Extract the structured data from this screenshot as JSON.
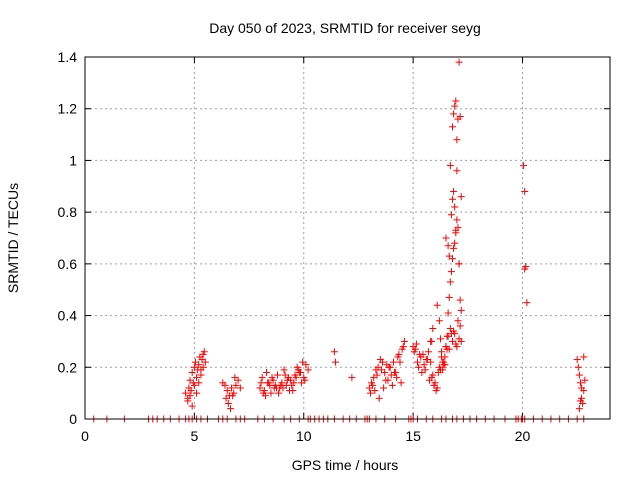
{
  "chart_data": {
    "type": "scatter",
    "title": "Day 050 of 2023, SRMTID for receiver seyg",
    "xlabel": "GPS time / hours",
    "ylabel": "SRMTID / TECUs",
    "xlim": [
      0,
      24
    ],
    "ylim": [
      0,
      1.4
    ],
    "xticks": [
      0,
      5,
      10,
      15,
      20
    ],
    "yticks": [
      0,
      0.2,
      0.4,
      0.6,
      0.8,
      1,
      1.2,
      1.4
    ],
    "xtick_labels": [
      "0",
      "5",
      "10",
      "15",
      "20"
    ],
    "ytick_labels": [
      "0",
      "0.2",
      "0.4",
      "0.6",
      "0.8",
      "1",
      "1.2",
      "1.4"
    ],
    "grid": true,
    "marker": "+",
    "color": "#ff0000",
    "series": [
      {
        "name": "SRMTID",
        "x": [
          0.4,
          1.0,
          1.8,
          2.9,
          3.1,
          3.3,
          3.6,
          3.9,
          4.3,
          4.6,
          4.75,
          4.9,
          5.1,
          5.3,
          5.6,
          6.1,
          6.3,
          6.5,
          6.9,
          7.1,
          7.3,
          7.9,
          8.2,
          8.6,
          9.1,
          9.4,
          9.8,
          10.2,
          10.3,
          10.5,
          10.7,
          10.9,
          11.1,
          11.4,
          11.8,
          12.1,
          12.4,
          12.8,
          12.9,
          13.0,
          13.3,
          13.7,
          14.2,
          14.8,
          14.9,
          15.0,
          15.2,
          15.6,
          15.9,
          16.3,
          16.5,
          16.8,
          17.0,
          17.3,
          17.6,
          17.9,
          18.3,
          18.7,
          19.2,
          19.7,
          19.8,
          19.95,
          20.0,
          20.1,
          20.5,
          20.9,
          21.3,
          21.7,
          22.1,
          22.5,
          22.8,
          4.6,
          4.7,
          4.75,
          4.8,
          4.85,
          4.9,
          4.95,
          5.0,
          5.05,
          5.1,
          5.15,
          5.2,
          5.25,
          5.3,
          5.35,
          5.4,
          5.45,
          5.5,
          4.7,
          4.8,
          4.9,
          5.0,
          5.1,
          5.2,
          5.3,
          5.4,
          6.3,
          6.4,
          6.5,
          6.6,
          6.7,
          6.8,
          6.9,
          7.0,
          7.1,
          6.45,
          6.55,
          6.65,
          6.75,
          6.85,
          8.0,
          8.1,
          8.2,
          8.3,
          8.4,
          8.5,
          8.6,
          8.7,
          8.8,
          8.9,
          9.0,
          9.1,
          9.2,
          9.3,
          9.4,
          9.5,
          9.6,
          9.7,
          9.8,
          9.9,
          10.0,
          10.1,
          10.2,
          8.05,
          8.25,
          8.45,
          8.65,
          8.85,
          9.05,
          9.25,
          9.45,
          9.65,
          9.85,
          10.05,
          8.15,
          8.35,
          8.55,
          8.75,
          8.95,
          9.15,
          9.35,
          9.55,
          9.75,
          9.95,
          11.4,
          11.45,
          12.2,
          13.0,
          13.1,
          13.2,
          13.3,
          13.4,
          13.5,
          13.6,
          13.7,
          13.8,
          13.9,
          14.0,
          14.1,
          14.2,
          14.3,
          14.4,
          14.5,
          14.6,
          13.05,
          13.25,
          13.45,
          13.65,
          13.85,
          14.05,
          14.25,
          14.45,
          13.15,
          13.35,
          13.55,
          13.75,
          13.95,
          14.15,
          14.35,
          14.55,
          15.0,
          15.1,
          15.2,
          15.3,
          15.4,
          15.5,
          15.6,
          15.7,
          15.8,
          15.9,
          16.0,
          16.1,
          16.2,
          16.3,
          16.4,
          16.5,
          16.6,
          16.7,
          16.8,
          16.9,
          17.0,
          17.1,
          17.2,
          15.05,
          15.25,
          15.45,
          15.65,
          15.85,
          16.05,
          16.25,
          16.45,
          16.65,
          16.85,
          17.05,
          15.15,
          15.35,
          15.55,
          15.75,
          15.95,
          16.15,
          16.35,
          16.55,
          16.75,
          16.95,
          17.15,
          15.8,
          15.85,
          15.9,
          16.1,
          16.2,
          16.25,
          16.3,
          16.35,
          16.4,
          16.45,
          16.5,
          16.55,
          16.6,
          16.65,
          16.7,
          16.75,
          16.8,
          16.85,
          16.9,
          16.95,
          17.0,
          17.05,
          17.1,
          17.15,
          17.2,
          16.5,
          16.6,
          16.65,
          16.7,
          16.75,
          16.8,
          16.85,
          16.9,
          16.95,
          17.0,
          17.1,
          17.2,
          16.8,
          16.85,
          16.9,
          16.95,
          17.0,
          17.05,
          17.1,
          17.15,
          20.05,
          20.1,
          20.15,
          20.1,
          20.2,
          22.5,
          22.55,
          22.6,
          22.65,
          22.7,
          22.75,
          22.8,
          22.85,
          22.6,
          22.7,
          22.8,
          22.65
        ],
        "y": [
          0,
          0,
          0,
          0,
          0,
          0,
          0,
          0,
          0,
          0,
          0,
          0,
          0,
          0,
          0,
          0,
          0,
          0,
          0,
          0,
          0,
          0,
          0,
          0,
          0,
          0,
          0,
          0,
          0,
          0,
          0,
          0,
          0,
          0,
          0,
          0,
          0,
          0,
          0,
          0,
          0,
          0,
          0,
          0,
          0,
          0,
          0,
          0,
          0,
          0,
          0,
          0,
          0,
          0,
          0,
          0,
          0,
          0,
          0,
          0,
          0,
          0,
          0,
          0,
          0,
          0,
          0,
          0,
          0,
          0,
          0,
          0.1,
          0.08,
          0.12,
          0.15,
          0.11,
          0.18,
          0.14,
          0.2,
          0.22,
          0.16,
          0.19,
          0.21,
          0.24,
          0.17,
          0.23,
          0.2,
          0.26,
          0.22,
          0.07,
          0.09,
          0.05,
          0.13,
          0.1,
          0.14,
          0.19,
          0.25,
          0.14,
          0.13,
          0.11,
          0.09,
          0.12,
          0.1,
          0.13,
          0.15,
          0.12,
          0.08,
          0.06,
          0.04,
          0.09,
          0.16,
          0.12,
          0.16,
          0.11,
          0.18,
          0.14,
          0.1,
          0.15,
          0.13,
          0.17,
          0.12,
          0.14,
          0.19,
          0.13,
          0.16,
          0.15,
          0.11,
          0.17,
          0.2,
          0.18,
          0.14,
          0.16,
          0.21,
          0.19,
          0.14,
          0.09,
          0.13,
          0.12,
          0.1,
          0.12,
          0.15,
          0.13,
          0.16,
          0.18,
          0.15,
          0.1,
          0.14,
          0.16,
          0.12,
          0.13,
          0.17,
          0.11,
          0.14,
          0.19,
          0.22,
          0.26,
          0.22,
          0.16,
          0.12,
          0.14,
          0.16,
          0.19,
          0.2,
          0.23,
          0.22,
          0.18,
          0.21,
          0.2,
          0.17,
          0.22,
          0.18,
          0.24,
          0.22,
          0.27,
          0.3,
          0.1,
          0.11,
          0.08,
          0.12,
          0.15,
          0.13,
          0.16,
          0.14,
          0.13,
          0.17,
          0.19,
          0.15,
          0.2,
          0.18,
          0.25,
          0.28,
          0.28,
          0.27,
          0.22,
          0.25,
          0.18,
          0.21,
          0.23,
          0.26,
          0.3,
          0.17,
          0.14,
          0.12,
          0.2,
          0.24,
          0.22,
          0.28,
          0.32,
          0.35,
          0.3,
          0.33,
          0.28,
          0.31,
          0.3,
          0.26,
          0.2,
          0.25,
          0.23,
          0.16,
          0.11,
          0.19,
          0.21,
          0.27,
          0.34,
          0.38,
          0.29,
          0.24,
          0.19,
          0.15,
          0.13,
          0.18,
          0.22,
          0.27,
          0.33,
          0.29,
          0.36,
          0.22,
          0.3,
          0.35,
          0.44,
          0.38,
          0.31,
          0.26,
          0.19,
          0.21,
          0.24,
          0.28,
          0.32,
          0.41,
          0.47,
          0.53,
          0.57,
          0.62,
          0.66,
          0.68,
          0.73,
          0.77,
          0.74,
          0.6,
          0.46,
          0.42,
          0.7,
          0.67,
          0.63,
          0.98,
          0.79,
          0.85,
          0.88,
          0.82,
          0.72,
          0.96,
          0.6,
          0.86,
          1.13,
          1.18,
          1.21,
          1.23,
          1.08,
          1.16,
          1.38,
          1.17,
          0.98,
          0.88,
          0.59,
          0.58,
          0.45,
          0.23,
          0.2,
          0.17,
          0.14,
          0.12,
          0.06,
          0.11,
          0.15,
          0.04,
          0.08,
          0.24,
          0.07
        ]
      }
    ]
  }
}
